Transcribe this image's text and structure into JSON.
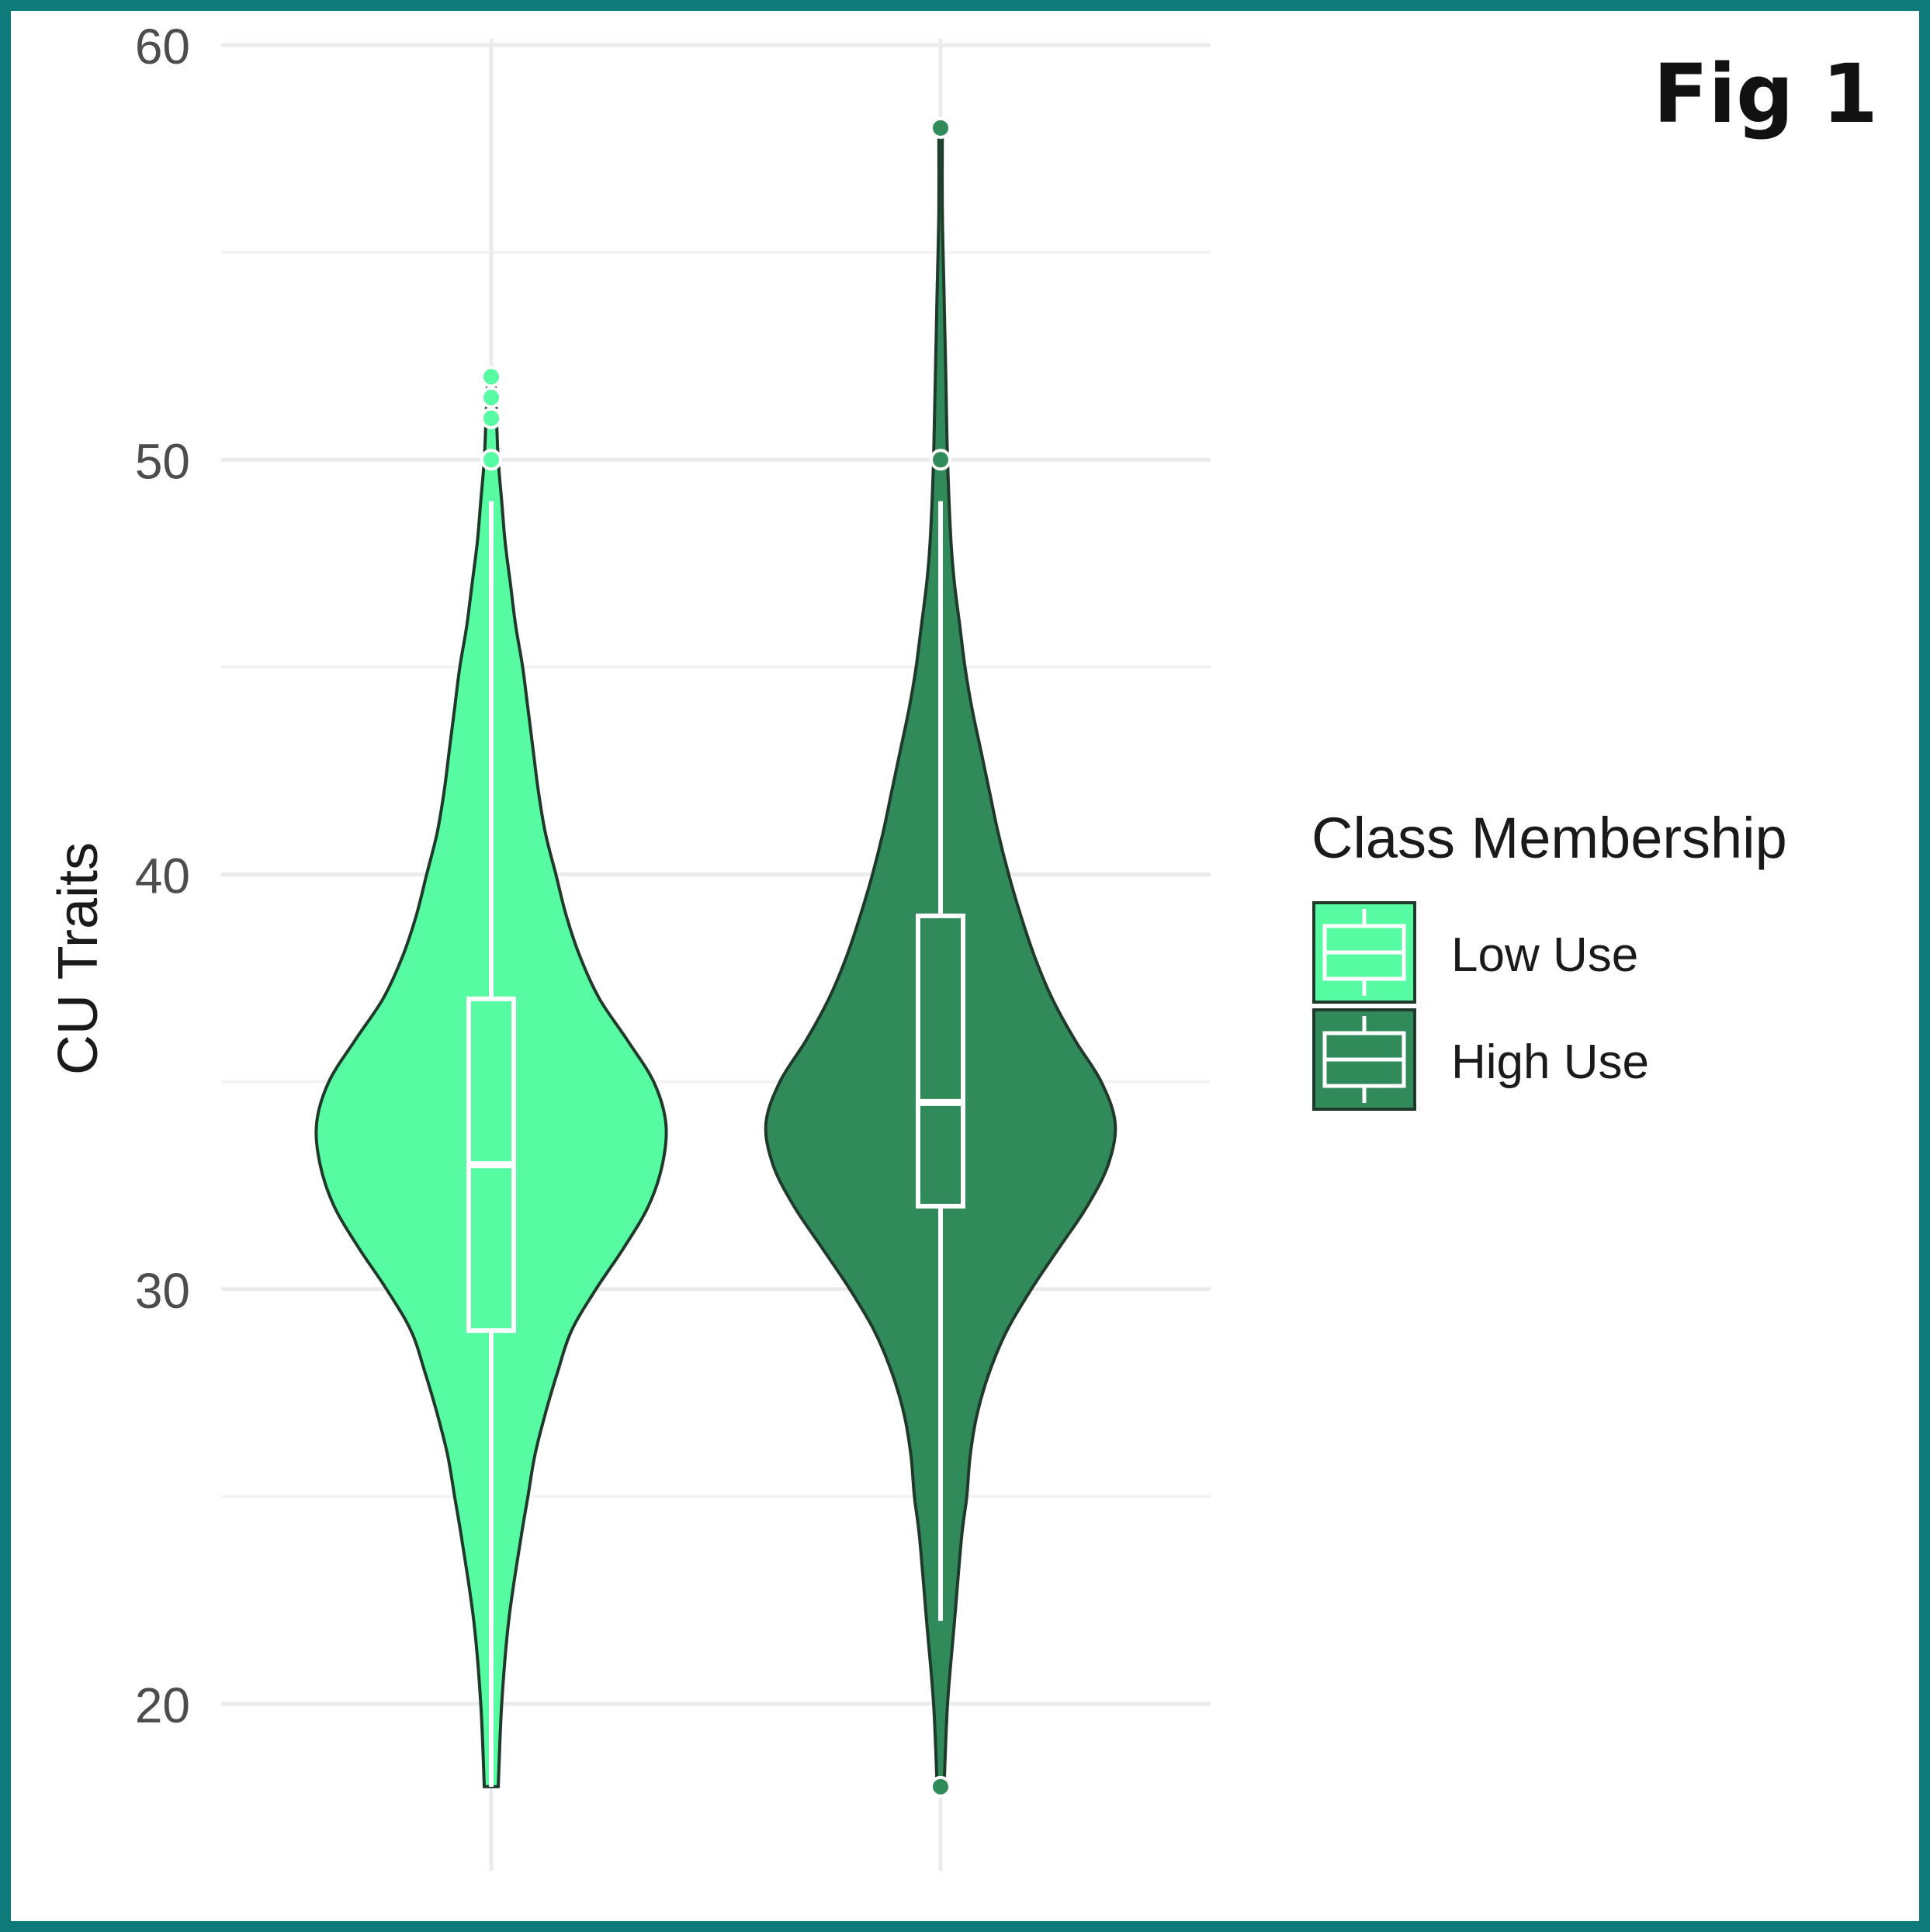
{
  "figure_label": "Fig 1",
  "colors": {
    "frame": "#0e7b7a",
    "grid": "#ebebeb",
    "outline": "#1f3a2a",
    "low_use": "#57fba2",
    "high_use": "#318a59",
    "box": "#ffffff"
  },
  "chart_data": {
    "type": "violin",
    "title": "",
    "xlabel": "",
    "ylabel": "CU Traits",
    "ylim": [
      15,
      60
    ],
    "y_ticks": [
      20,
      30,
      40,
      50,
      60
    ],
    "grid": true,
    "legend": {
      "title": "Class Membership",
      "position": "right"
    },
    "series": [
      {
        "name": "Low Use",
        "color": "#57fba2",
        "min": 18,
        "max": 52,
        "box": {
          "q1": 29,
          "median": 33,
          "q3": 37,
          "whisker_low": 18,
          "whisker_high": 49
        },
        "outliers": [
          50,
          51,
          51.5,
          52
        ],
        "density": [
          [
            18,
            0.04
          ],
          [
            20,
            0.06
          ],
          [
            22,
            0.1
          ],
          [
            24,
            0.17
          ],
          [
            25,
            0.21
          ],
          [
            26,
            0.25
          ],
          [
            27,
            0.31
          ],
          [
            28,
            0.38
          ],
          [
            29,
            0.46
          ],
          [
            30,
            0.6
          ],
          [
            31,
            0.76
          ],
          [
            32,
            0.9
          ],
          [
            33,
            0.98
          ],
          [
            34,
            1.0
          ],
          [
            35,
            0.93
          ],
          [
            36,
            0.78
          ],
          [
            37,
            0.62
          ],
          [
            38,
            0.51
          ],
          [
            39,
            0.43
          ],
          [
            40,
            0.37
          ],
          [
            41,
            0.31
          ],
          [
            42,
            0.27
          ],
          [
            43,
            0.24
          ],
          [
            44,
            0.21
          ],
          [
            45,
            0.18
          ],
          [
            46,
            0.14
          ],
          [
            47,
            0.11
          ],
          [
            48,
            0.08
          ],
          [
            49,
            0.06
          ],
          [
            50,
            0.04
          ],
          [
            51,
            0.03
          ],
          [
            52,
            0.02
          ]
        ]
      },
      {
        "name": "High Use",
        "color": "#318a59",
        "min": 18,
        "max": 58,
        "box": {
          "q1": 32,
          "median": 34.5,
          "q3": 39,
          "whisker_low": 22,
          "whisker_high": 49
        },
        "outliers": [
          18,
          50,
          58
        ],
        "density": [
          [
            18,
            0.02
          ],
          [
            20,
            0.04
          ],
          [
            22,
            0.08
          ],
          [
            24,
            0.12
          ],
          [
            25,
            0.15
          ],
          [
            26,
            0.17
          ],
          [
            27,
            0.21
          ],
          [
            28,
            0.28
          ],
          [
            29,
            0.38
          ],
          [
            30,
            0.52
          ],
          [
            31,
            0.68
          ],
          [
            32,
            0.84
          ],
          [
            33,
            0.96
          ],
          [
            34,
            1.0
          ],
          [
            35,
            0.92
          ],
          [
            36,
            0.77
          ],
          [
            37,
            0.64
          ],
          [
            38,
            0.54
          ],
          [
            39,
            0.46
          ],
          [
            40,
            0.39
          ],
          [
            41,
            0.33
          ],
          [
            42,
            0.28
          ],
          [
            43,
            0.23
          ],
          [
            44,
            0.18
          ],
          [
            45,
            0.14
          ],
          [
            46,
            0.11
          ],
          [
            47,
            0.08
          ],
          [
            48,
            0.06
          ],
          [
            50,
            0.04
          ],
          [
            52,
            0.03
          ],
          [
            54,
            0.02
          ],
          [
            56,
            0.01
          ],
          [
            58,
            0.01
          ]
        ]
      }
    ]
  }
}
